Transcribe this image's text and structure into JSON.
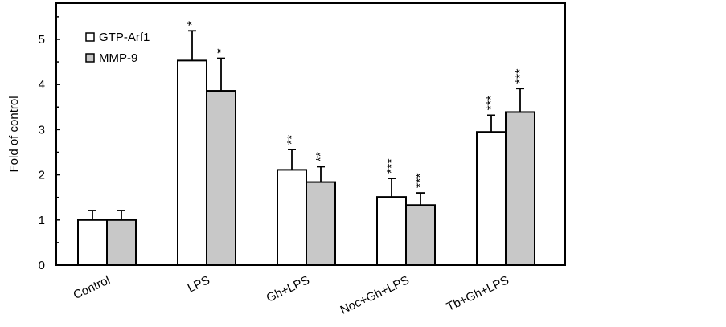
{
  "chart_data": {
    "type": "bar",
    "title": "",
    "xlabel": "",
    "ylabel": "Fold of control",
    "ylim": [
      0,
      5.8
    ],
    "yticks": [
      0,
      1,
      2,
      3,
      4,
      5
    ],
    "grid": false,
    "legend_position": "top-left",
    "categories": [
      "Control",
      "LPS",
      "Gh+LPS",
      "Noc+Gh+LPS",
      "Tb+Gh+LPS"
    ],
    "series": [
      {
        "name": "GTP-Arf1",
        "color": "#ffffff",
        "values": [
          1.0,
          4.53,
          2.11,
          1.51,
          2.95
        ],
        "errors": [
          0.21,
          0.66,
          0.45,
          0.41,
          0.37
        ],
        "significance": [
          "",
          "*",
          "**",
          "***",
          "***"
        ]
      },
      {
        "name": "MMP-9",
        "color": "#c8c8c8",
        "values": [
          1.0,
          3.86,
          1.84,
          1.33,
          3.39
        ],
        "errors": [
          0.21,
          0.72,
          0.34,
          0.27,
          0.52
        ],
        "significance": [
          "",
          "*",
          "**",
          "***",
          "***"
        ]
      }
    ]
  }
}
